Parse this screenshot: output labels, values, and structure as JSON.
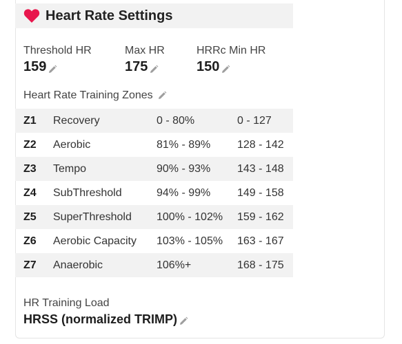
{
  "header": {
    "title": "Heart Rate Settings",
    "icon": "heart-icon",
    "icon_color": "#e8174d"
  },
  "stats": {
    "threshold": {
      "label": "Threshold HR",
      "value": "159"
    },
    "max": {
      "label": "Max HR",
      "value": "175"
    },
    "hrrc_min": {
      "label": "HRRc Min HR",
      "value": "150"
    }
  },
  "zones": {
    "title": "Heart Rate Training Zones",
    "rows": [
      {
        "id": "Z1",
        "name": "Recovery",
        "pct": "0 - 80%",
        "bpm": "0 - 127"
      },
      {
        "id": "Z2",
        "name": "Aerobic",
        "pct": "81% - 89%",
        "bpm": "128 - 142"
      },
      {
        "id": "Z3",
        "name": "Tempo",
        "pct": "90% - 93%",
        "bpm": "143 - 148"
      },
      {
        "id": "Z4",
        "name": "SubThreshold",
        "pct": "94% - 99%",
        "bpm": "149 - 158"
      },
      {
        "id": "Z5",
        "name": "SuperThreshold",
        "pct": "100% - 102%",
        "bpm": "159 - 162"
      },
      {
        "id": "Z6",
        "name": "Aerobic Capacity",
        "pct": "103% - 105%",
        "bpm": "163 - 167"
      },
      {
        "id": "Z7",
        "name": "Anaerobic",
        "pct": "106%+",
        "bpm": "168 - 175"
      }
    ]
  },
  "load": {
    "label": "HR Training Load",
    "value": "HRSS (normalized TRIMP)"
  },
  "edit_icon": "pencil-icon"
}
